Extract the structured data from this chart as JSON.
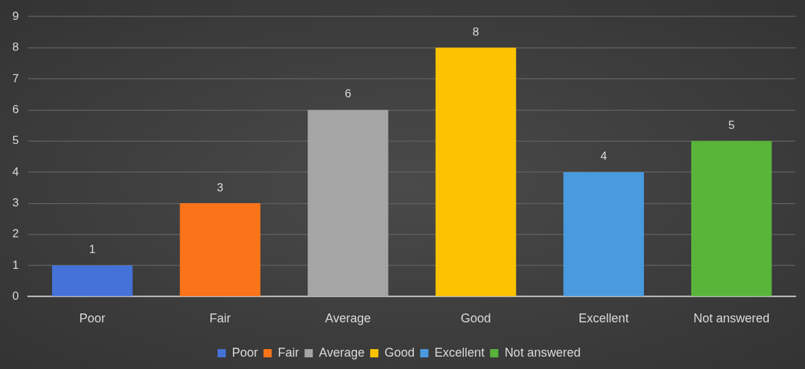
{
  "chart_data": {
    "type": "bar",
    "categories": [
      "Poor",
      "Fair",
      "Average",
      "Good",
      "Excellent",
      "Not answered"
    ],
    "series": [
      {
        "name": "Poor",
        "color": "#4472d8",
        "values": [
          1,
          null,
          null,
          null,
          null,
          null
        ]
      },
      {
        "name": "Fair",
        "color": "#fb7419",
        "values": [
          null,
          3,
          null,
          null,
          null,
          null
        ]
      },
      {
        "name": "Average",
        "color": "#a5a5a5",
        "values": [
          null,
          null,
          6,
          null,
          null,
          null
        ]
      },
      {
        "name": "Good",
        "color": "#fcc200",
        "values": [
          null,
          null,
          null,
          8,
          null,
          null
        ]
      },
      {
        "name": "Excellent",
        "color": "#4a9ae0",
        "values": [
          null,
          null,
          null,
          null,
          4,
          null
        ]
      },
      {
        "name": "Not answered",
        "color": "#58b53a",
        "values": [
          null,
          null,
          null,
          null,
          null,
          5
        ]
      }
    ],
    "ylim": [
      0,
      9
    ],
    "yticks": [
      0,
      1,
      2,
      3,
      4,
      5,
      6,
      7,
      8,
      9
    ],
    "grid": "y",
    "legend": "bottom",
    "data_labels": true
  }
}
